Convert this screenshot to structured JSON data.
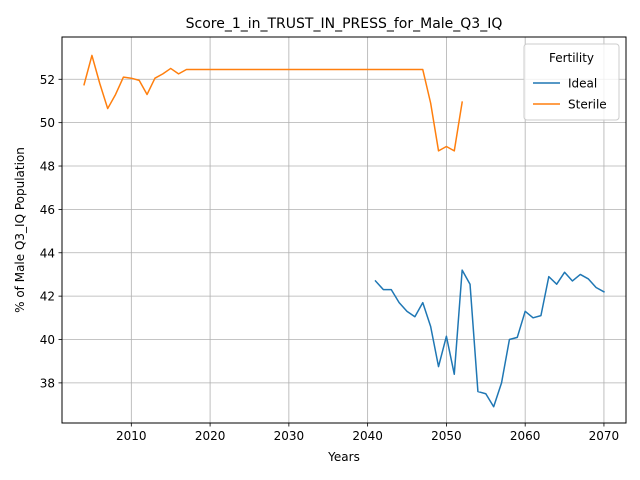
{
  "chart_data": {
    "type": "line",
    "title": "Score_1_in_TRUST_IN_PRESS_for_Male_Q3_IQ",
    "xlabel": "Years",
    "ylabel": "% of Male Q3_IQ Population",
    "xlim": [
      2001.2,
      2072.8
    ],
    "ylim": [
      36.15,
      53.95
    ],
    "xticks": [
      2010,
      2020,
      2030,
      2040,
      2050,
      2060,
      2070
    ],
    "yticks": [
      38,
      40,
      42,
      44,
      46,
      48,
      50,
      52
    ],
    "grid": true,
    "legend": {
      "title": "Fertility",
      "placement": "upper right"
    },
    "series": [
      {
        "name": "Ideal",
        "color": "#1f77b4",
        "x": [
          2041,
          2042,
          2043,
          2044,
          2045,
          2046,
          2047,
          2048,
          2049,
          2050,
          2051,
          2052,
          2053,
          2054,
          2055,
          2056,
          2057,
          2058,
          2059,
          2060,
          2061,
          2062,
          2063,
          2064,
          2065,
          2066,
          2067,
          2068,
          2069,
          2070
        ],
        "y": [
          42.7,
          42.3,
          42.3,
          41.7,
          41.3,
          41.05,
          41.7,
          40.6,
          38.75,
          40.15,
          38.4,
          43.2,
          42.55,
          37.6,
          37.5,
          36.9,
          38.0,
          40.0,
          40.1,
          41.3,
          41.0,
          41.1,
          42.9,
          42.55,
          43.1,
          42.7,
          43.0,
          42.8,
          42.4,
          42.2
        ]
      },
      {
        "name": "Sterile",
        "color": "#ff7f0e",
        "x": [
          2004,
          2005,
          2006,
          2007,
          2008,
          2009,
          2010,
          2011,
          2012,
          2013,
          2014,
          2015,
          2016,
          2017,
          2018,
          2019,
          2020,
          2021,
          2022,
          2023,
          2024,
          2025,
          2026,
          2027,
          2028,
          2029,
          2030,
          2031,
          2032,
          2033,
          2034,
          2035,
          2036,
          2037,
          2038,
          2039,
          2040,
          2041,
          2042,
          2043,
          2044,
          2045,
          2046,
          2047,
          2048,
          2049,
          2050,
          2051,
          2052
        ],
        "y": [
          51.75,
          53.1,
          51.8,
          50.65,
          51.3,
          52.1,
          52.05,
          51.95,
          51.3,
          52.05,
          52.25,
          52.5,
          52.25,
          52.45,
          52.45,
          52.45,
          52.45,
          52.45,
          52.45,
          52.45,
          52.45,
          52.45,
          52.45,
          52.45,
          52.45,
          52.45,
          52.45,
          52.45,
          52.45,
          52.45,
          52.45,
          52.45,
          52.45,
          52.45,
          52.45,
          52.45,
          52.45,
          52.45,
          52.45,
          52.45,
          52.45,
          52.45,
          52.45,
          52.45,
          50.9,
          48.7,
          48.9,
          48.7,
          50.95
        ]
      }
    ]
  }
}
